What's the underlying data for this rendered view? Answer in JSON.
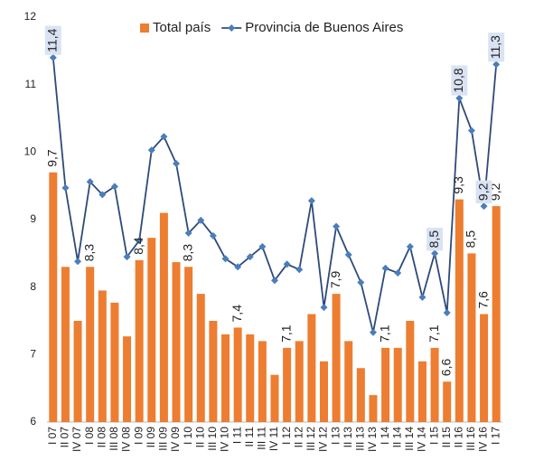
{
  "chart_data": {
    "type": "bar",
    "categories": [
      "I 07",
      "II 07",
      "IV 07",
      "I 08",
      "II 08",
      "III 08",
      "IV 08",
      "I 09",
      "II 09",
      "III 09",
      "IV 09",
      "I 10",
      "II 10",
      "III 10",
      "IV 10",
      "I 11",
      "II 11",
      "III 11",
      "IV 11",
      "I 12",
      "II 12",
      "III 12",
      "IV 12",
      "I 13",
      "II 13",
      "III 13",
      "IV 13",
      "I 14",
      "II 14",
      "III 14",
      "IV 14",
      "I 15",
      "II 15",
      "II 16",
      "III 16",
      "IV 16",
      "I 17"
    ],
    "series": [
      {
        "name": "Total país",
        "color": "#ed7d31",
        "values": [
          9.7,
          8.3,
          7.5,
          8.3,
          7.95,
          7.77,
          7.27,
          8.4,
          8.73,
          9.1,
          8.37,
          8.3,
          7.9,
          7.5,
          7.3,
          7.4,
          7.3,
          7.2,
          6.7,
          7.1,
          7.2,
          7.6,
          6.9,
          7.9,
          7.2,
          6.8,
          6.4,
          7.1,
          7.1,
          7.5,
          6.9,
          7.1,
          6.6,
          9.3,
          8.5,
          7.6,
          9.2
        ],
        "value_labels": [
          "9,7",
          null,
          null,
          "8,3",
          null,
          null,
          null,
          "8,4",
          null,
          null,
          null,
          "8,3",
          null,
          null,
          null,
          "7,4",
          null,
          null,
          null,
          "7,1",
          null,
          null,
          null,
          "7,9",
          null,
          null,
          null,
          "7,1",
          null,
          null,
          null,
          "7,1",
          "6,6",
          "9,3",
          "8,5",
          "7,6",
          "9,2"
        ]
      },
      {
        "name": "Provincia de Buenos Aires",
        "type": "line",
        "color": "#2e4a7a",
        "marker_color": "#4a7ebb",
        "values": [
          11.4,
          9.47,
          8.38,
          9.56,
          9.37,
          9.49,
          8.45,
          8.69,
          10.03,
          10.23,
          9.83,
          8.8,
          8.99,
          8.76,
          8.42,
          8.3,
          8.45,
          8.6,
          8.1,
          8.34,
          8.26,
          9.28,
          7.7,
          8.9,
          8.48,
          8.07,
          7.33,
          8.28,
          8.21,
          8.6,
          7.85,
          8.5,
          7.62,
          10.8,
          10.32,
          9.2,
          11.3
        ],
        "value_labels": [
          "11,4",
          null,
          null,
          null,
          null,
          null,
          null,
          null,
          null,
          null,
          null,
          null,
          null,
          null,
          null,
          null,
          null,
          null,
          null,
          null,
          null,
          null,
          null,
          null,
          null,
          null,
          null,
          null,
          null,
          null,
          null,
          "8,5",
          null,
          "10,8",
          null,
          "9,2",
          "11,3"
        ]
      }
    ],
    "ylim": [
      6,
      12
    ],
    "yticks": [
      6,
      7,
      8,
      9,
      10,
      11,
      12
    ],
    "grid": false,
    "legend": "top"
  }
}
